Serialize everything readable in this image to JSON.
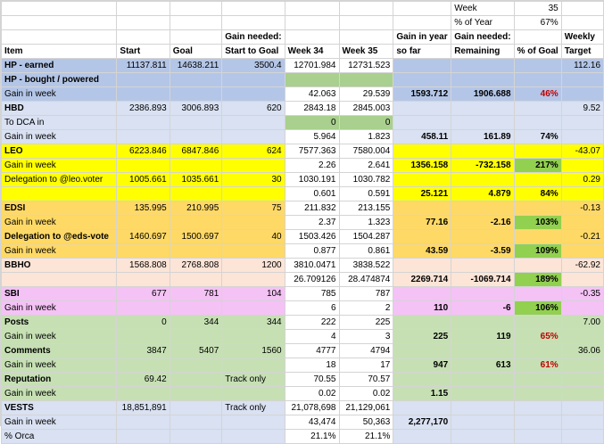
{
  "header": {
    "week_label": "Week",
    "week_value": "35",
    "pct_year_label": "% of Year",
    "pct_year_value": "67%",
    "col_item": "Item",
    "col_start": "Start",
    "col_goal": "Goal",
    "col_gain_needed_1": "Gain needed:",
    "col_gain_needed_2": "Start to Goal",
    "col_week34": "Week 34",
    "col_week35": "Week 35",
    "col_gain_year_1": "Gain in year",
    "col_gain_year_2": "so far",
    "col_gain_rem_1": "Gain needed:",
    "col_gain_rem_2": "Remaining",
    "col_pct_goal": "% of Goal",
    "col_weekly_1": "Weekly",
    "col_weekly_2": "Target"
  },
  "rows": [
    {
      "item": "HP - earned",
      "bold": true,
      "bg": "#b4c6e7",
      "start": "11137.811",
      "goal": "14638.211",
      "need": "3500.4",
      "w34": "12701.984",
      "w35": "12731.523",
      "weekly": "112.16"
    },
    {
      "item": "HP - bought / powered",
      "bold": true,
      "bg": "#b4c6e7",
      "w34bg": "#a9d08e",
      "w35bg": "#a9d08e"
    },
    {
      "item": "Gain in week",
      "bg": "#b4c6e7",
      "w34": "42.063",
      "w35": "29.539",
      "year": "1593.712",
      "rem": "1906.688",
      "pct": "46%",
      "pctRed": true
    },
    {
      "item": "HBD",
      "bold": true,
      "bg": "#d9e1f2",
      "start": "2386.893",
      "goal": "3006.893",
      "need": "620",
      "w34": "2843.18",
      "w35": "2845.003",
      "weekly": "9.52"
    },
    {
      "item": "To DCA in",
      "bg": "#d9e1f2",
      "w34": "0",
      "w35": "0",
      "w34bg": "#a9d08e",
      "w35bg": "#a9d08e"
    },
    {
      "item": "Gain in week",
      "bg": "#d9e1f2",
      "w34": "5.964",
      "w35": "1.823",
      "year": "458.11",
      "rem": "161.89",
      "pct": "74%"
    },
    {
      "item": "LEO",
      "bold": true,
      "bg": "#ffff00",
      "start": "6223.846",
      "goal": "6847.846",
      "need": "624",
      "w34": "7577.363",
      "w35": "7580.004",
      "weekly": "-43.07"
    },
    {
      "item": "Gain in week",
      "bg": "#ffff00",
      "w34": "2.26",
      "w35": "2.641",
      "year": "1356.158",
      "rem": "-732.158",
      "pct": "217%",
      "pctGreen": true
    },
    {
      "item": "Delegation to @leo.voter",
      "bg": "#ffff00",
      "start": "1005.661",
      "goal": "1035.661",
      "need": "30",
      "w34": "1030.191",
      "w35": "1030.782",
      "weekly": "0.29"
    },
    {
      "item": "",
      "bg": "#ffff00",
      "w34": "0.601",
      "w35": "0.591",
      "year": "25.121",
      "rem": "4.879",
      "pct": "84%"
    },
    {
      "item": "EDSI",
      "bold": true,
      "bg": "#ffd966",
      "start": "135.995",
      "goal": "210.995",
      "need": "75",
      "w34": "211.832",
      "w35": "213.155",
      "weekly": "-0.13"
    },
    {
      "item": "Gain in week",
      "bg": "#ffd966",
      "w34": "2.37",
      "w35": "1.323",
      "year": "77.16",
      "rem": "-2.16",
      "pct": "103%",
      "pctGreen": true
    },
    {
      "item": "Delegation to @eds-vote",
      "bold": true,
      "bg": "#ffd966",
      "start": "1460.697",
      "goal": "1500.697",
      "need": "40",
      "w34": "1503.426",
      "w35": "1504.287",
      "weekly": "-0.21"
    },
    {
      "item": "Gain in week",
      "bg": "#ffd966",
      "w34": "0.877",
      "w35": "0.861",
      "year": "43.59",
      "rem": "-3.59",
      "pct": "109%",
      "pctGreen": true
    },
    {
      "item": "BBHO",
      "bold": true,
      "bg": "#fce4d6",
      "start": "1568.808",
      "goal": "2768.808",
      "need": "1200",
      "w34": "3810.0471",
      "w35": "3838.522",
      "weekly": "-62.92"
    },
    {
      "item": "",
      "bg": "#fce4d6",
      "w34": "26.709126",
      "w35": "28.474874",
      "year": "2269.714",
      "rem": "-1069.714",
      "pct": "189%",
      "pctGreen": true
    },
    {
      "item": "SBI",
      "bold": true,
      "bg": "#f4c2f5",
      "start": "677",
      "goal": "781",
      "need": "104",
      "w34": "785",
      "w35": "787",
      "weekly": "-0.35"
    },
    {
      "item": "Gain in week",
      "bg": "#f4c2f5",
      "w34": "6",
      "w35": "2",
      "year": "110",
      "rem": "-6",
      "pct": "106%",
      "pctGreen": true
    },
    {
      "item": "Posts",
      "bold": true,
      "bg": "#c6e0b4",
      "start": "0",
      "goal": "344",
      "need": "344",
      "w34": "222",
      "w35": "225",
      "weekly": "7.00"
    },
    {
      "item": "Gain in week",
      "bg": "#c6e0b4",
      "w34": "4",
      "w35": "3",
      "year": "225",
      "rem": "119",
      "pct": "65%",
      "pctRed": true
    },
    {
      "item": "Comments",
      "bold": true,
      "bg": "#c6e0b4",
      "start": "3847",
      "goal": "5407",
      "need": "1560",
      "w34": "4777",
      "w35": "4794",
      "weekly": "36.06"
    },
    {
      "item": "Gain in week",
      "bg": "#c6e0b4",
      "w34": "18",
      "w35": "17",
      "year": "947",
      "rem": "613",
      "pct": "61%",
      "pctRed": true
    },
    {
      "item": "Reputation",
      "bold": true,
      "bg": "#c6e0b4",
      "start": "69.42",
      "goal": "",
      "needText": "Track only",
      "w34": "70.55",
      "w35": "70.57"
    },
    {
      "item": "Gain in week",
      "bg": "#c6e0b4",
      "w34": "0.02",
      "w35": "0.02",
      "year": "1.15"
    },
    {
      "item": "VESTS",
      "bold": true,
      "bg": "#d9e1f2",
      "start": "18,851,891",
      "goal": "",
      "needText": "Track only",
      "w34": "21,078,698",
      "w35": "21,129,061"
    },
    {
      "item": "Gain in week",
      "bg": "#d9e1f2",
      "w34": "43,474",
      "w35": "50,363",
      "year": "2,277,170"
    },
    {
      "item": "% Orca",
      "bg": "#d9e1f2",
      "w34": "21.1%",
      "w35": "21.1%"
    }
  ]
}
